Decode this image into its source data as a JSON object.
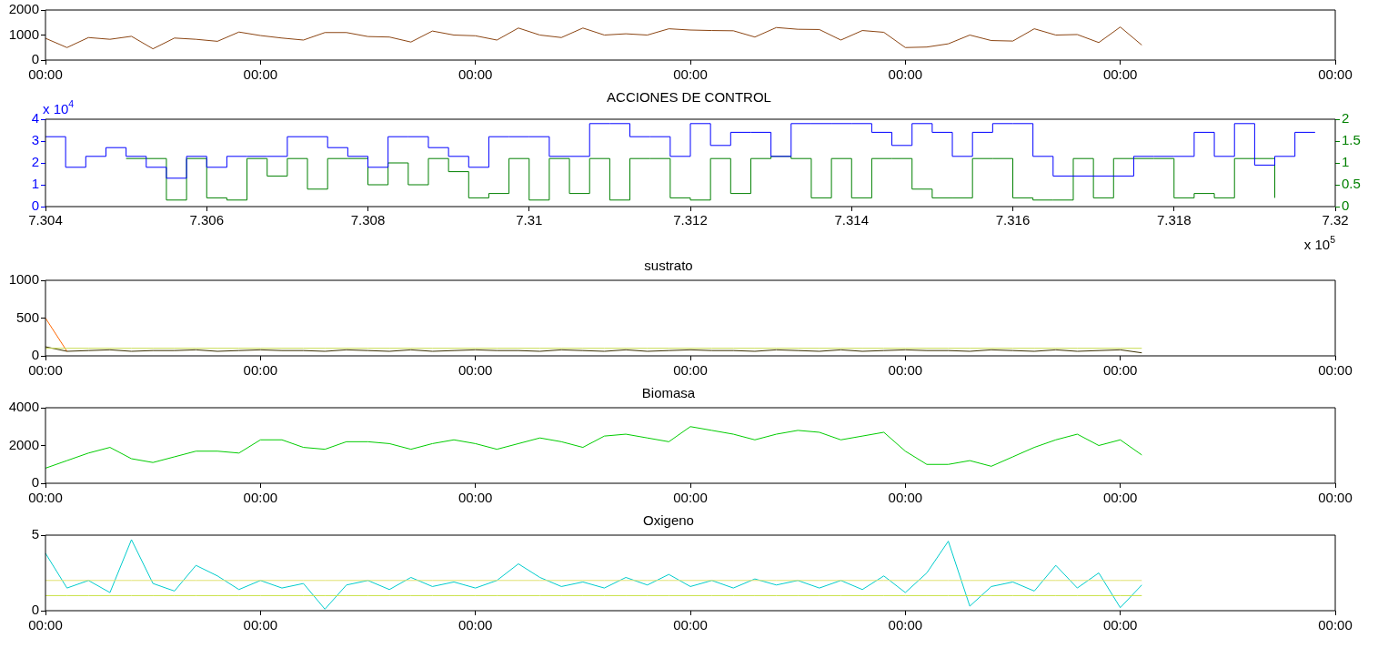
{
  "chart_data": [
    {
      "type": "line",
      "categories": [
        "00:00",
        null,
        null,
        null,
        null,
        null,
        null,
        null,
        null,
        null,
        "00:00",
        null,
        null,
        null,
        null,
        null,
        null,
        null,
        null,
        null,
        "00:00",
        null,
        null,
        null,
        null,
        null,
        null,
        null,
        null,
        null,
        "00:00",
        null,
        null,
        null,
        null,
        null,
        null,
        null,
        null,
        null,
        "00:00",
        null,
        null,
        null,
        null,
        null,
        null,
        null,
        null,
        null,
        "00:00",
        null,
        null,
        null,
        null,
        null,
        null,
        null,
        null,
        null,
        "00:00"
      ],
      "series": [
        {
          "color": "#8b4513",
          "values": [
            870,
            500,
            900,
            830,
            950,
            450,
            880,
            830,
            750,
            1120,
            980,
            880,
            800,
            1100,
            1100,
            940,
            920,
            720,
            1160,
            1000,
            970,
            800,
            1280,
            1000,
            900,
            1280,
            1000,
            1050,
            1000,
            1250,
            1200,
            1180,
            1170,
            920,
            1300,
            1230,
            1220,
            800,
            1180,
            1110,
            500,
            520,
            650,
            1000,
            780,
            760,
            1250,
            1000,
            1020,
            700,
            1320,
            600,
            null,
            null,
            null,
            null,
            null,
            null,
            null,
            null,
            null
          ]
        }
      ],
      "ylim": [
        0,
        2000
      ],
      "yticks": [
        0,
        1000,
        2000
      ],
      "grid": false,
      "legend": false
    },
    {
      "type": "step",
      "title": "ACCIONES DE CONTROL",
      "annotations": [
        "x 10$^{4}$",
        "x 10$^{5}$"
      ],
      "x": [
        7.304,
        7.30425,
        7.3045,
        7.30475,
        7.305,
        7.30525,
        7.3055,
        7.30575,
        7.306,
        7.30625,
        7.3065,
        7.30675,
        7.307,
        7.30725,
        7.3075,
        7.30775,
        7.308,
        7.30825,
        7.3085,
        7.30875,
        7.309,
        7.30925,
        7.3095,
        7.30975,
        7.31,
        7.31025,
        7.3105,
        7.31075,
        7.311,
        7.31125,
        7.3115,
        7.31175,
        7.312,
        7.31225,
        7.3125,
        7.31275,
        7.313,
        7.31325,
        7.3135,
        7.31375,
        7.314,
        7.31425,
        7.3145,
        7.31475,
        7.315,
        7.31525,
        7.3155,
        7.31575,
        7.316,
        7.31625,
        7.3165,
        7.31675,
        7.317,
        7.31725,
        7.3175,
        7.31775,
        7.318,
        7.31825,
        7.3185,
        7.31875,
        7.319,
        7.31925,
        7.3195,
        7.31975
      ],
      "series": [
        {
          "color": "#0000ff",
          "values": [
            3.2,
            1.8,
            2.3,
            2.7,
            2.3,
            1.8,
            1.3,
            2.3,
            1.8,
            2.3,
            2.3,
            2.3,
            3.2,
            3.2,
            2.7,
            2.3,
            1.8,
            3.2,
            3.2,
            2.7,
            2.3,
            1.8,
            3.2,
            3.2,
            3.2,
            2.3,
            2.3,
            3.8,
            3.8,
            3.2,
            3.2,
            2.3,
            3.8,
            2.8,
            3.4,
            3.4,
            2.3,
            3.8,
            3.8,
            3.8,
            3.8,
            3.4,
            2.8,
            3.8,
            3.4,
            2.3,
            3.4,
            3.8,
            3.8,
            2.3,
            1.4,
            1.4,
            1.4,
            1.4,
            2.3,
            2.3,
            2.3,
            3.4,
            2.3,
            3.8,
            1.9,
            2.3,
            3.4,
            3.4
          ]
        },
        {
          "color": "#008000",
          "axis": "y2",
          "values": [
            null,
            null,
            null,
            null,
            1.1,
            1.1,
            0.15,
            1.1,
            0.2,
            0.15,
            1.1,
            0.7,
            1.1,
            0.4,
            1.1,
            1.1,
            0.5,
            1.0,
            0.5,
            1.1,
            0.8,
            0.2,
            0.3,
            1.1,
            0.15,
            1.1,
            0.3,
            1.1,
            0.15,
            1.1,
            1.1,
            0.2,
            0.15,
            1.1,
            0.3,
            1.1,
            1.15,
            1.1,
            0.2,
            1.1,
            0.2,
            1.1,
            1.1,
            0.4,
            0.2,
            0.2,
            1.1,
            1.1,
            0.2,
            0.15,
            0.15,
            1.1,
            0.2,
            1.1,
            1.1,
            1.1,
            0.2,
            0.3,
            0.2,
            1.1,
            1.1,
            0.2,
            null,
            null
          ]
        }
      ],
      "xlim": [
        7.304,
        7.32
      ],
      "xticks": [
        7.304,
        7.306,
        7.308,
        7.31,
        7.312,
        7.314,
        7.316,
        7.318,
        7.32
      ],
      "ylim": [
        0,
        4
      ],
      "yticks": [
        0,
        1,
        2,
        3,
        4
      ],
      "y2lim": [
        0,
        2
      ],
      "y2ticks": [
        0,
        0.5,
        1,
        1.5,
        2
      ],
      "grid": false,
      "legend": false
    },
    {
      "type": "line",
      "title": "sustrato",
      "categories": [
        "00:00",
        null,
        null,
        null,
        null,
        null,
        null,
        null,
        null,
        null,
        "00:00",
        null,
        null,
        null,
        null,
        null,
        null,
        null,
        null,
        null,
        "00:00",
        null,
        null,
        null,
        null,
        null,
        null,
        null,
        null,
        null,
        "00:00",
        null,
        null,
        null,
        null,
        null,
        null,
        null,
        null,
        null,
        "00:00",
        null,
        null,
        null,
        null,
        null,
        null,
        null,
        null,
        null,
        "00:00",
        null,
        null,
        null,
        null,
        null,
        null,
        null,
        null,
        null,
        "00:00"
      ],
      "series": [
        {
          "color": "#c8dc50",
          "values": [
            100,
            100,
            100,
            100,
            100,
            100,
            100,
            100,
            100,
            100,
            100,
            100,
            100,
            100,
            100,
            100,
            100,
            100,
            100,
            100,
            100,
            100,
            100,
            100,
            100,
            100,
            100,
            100,
            100,
            100,
            100,
            100,
            100,
            100,
            100,
            100,
            100,
            100,
            100,
            100,
            100,
            100,
            100,
            100,
            100,
            100,
            100,
            100,
            100,
            100,
            100,
            100,
            null,
            null,
            null,
            null,
            null,
            null,
            null,
            null,
            null
          ]
        },
        {
          "color": "#3a3000",
          "values": [
            120,
            60,
            70,
            80,
            60,
            70,
            70,
            80,
            60,
            70,
            80,
            70,
            70,
            60,
            80,
            70,
            60,
            80,
            60,
            70,
            80,
            70,
            70,
            60,
            80,
            70,
            60,
            80,
            60,
            70,
            80,
            70,
            70,
            60,
            80,
            70,
            60,
            80,
            60,
            70,
            80,
            70,
            70,
            60,
            80,
            70,
            60,
            80,
            60,
            70,
            80,
            40,
            null,
            null,
            null,
            null,
            null,
            null,
            null,
            null,
            null
          ]
        },
        {
          "color": "#ff6600",
          "values": [
            500,
            60,
            null,
            null,
            null,
            null,
            null,
            null,
            null,
            null,
            null,
            null,
            null,
            null,
            null,
            null,
            null,
            null,
            null,
            null,
            null,
            null,
            null,
            null,
            null,
            null,
            null,
            null,
            null,
            null,
            null,
            null,
            null,
            null,
            null,
            null,
            null,
            null,
            null,
            null,
            null,
            null,
            null,
            null,
            null,
            null,
            null,
            null,
            null,
            null,
            null,
            null,
            null,
            null,
            null,
            null,
            null,
            null,
            null,
            null,
            null
          ]
        }
      ],
      "ylim": [
        0,
        1000
      ],
      "yticks": [
        0,
        500,
        1000
      ],
      "grid": false,
      "legend": false
    },
    {
      "type": "line",
      "title": "Biomasa",
      "categories": [
        "00:00",
        null,
        null,
        null,
        null,
        null,
        null,
        null,
        null,
        null,
        "00:00",
        null,
        null,
        null,
        null,
        null,
        null,
        null,
        null,
        null,
        "00:00",
        null,
        null,
        null,
        null,
        null,
        null,
        null,
        null,
        null,
        "00:00",
        null,
        null,
        null,
        null,
        null,
        null,
        null,
        null,
        null,
        "00:00",
        null,
        null,
        null,
        null,
        null,
        null,
        null,
        null,
        null,
        "00:00",
        null,
        null,
        null,
        null,
        null,
        null,
        null,
        null,
        null,
        "00:00"
      ],
      "series": [
        {
          "color": "#00cc00",
          "values": [
            800,
            1200,
            1600,
            1900,
            1300,
            1100,
            1400,
            1700,
            1700,
            1600,
            2300,
            2300,
            1900,
            1800,
            2200,
            2200,
            2100,
            1800,
            2100,
            2300,
            2100,
            1800,
            2100,
            2400,
            2200,
            1900,
            2500,
            2600,
            2400,
            2200,
            3000,
            2800,
            2600,
            2300,
            2600,
            2800,
            2700,
            2300,
            2500,
            2700,
            1700,
            1000,
            1000,
            1200,
            900,
            1400,
            1900,
            2300,
            2600,
            2000,
            2300,
            1500,
            null,
            null,
            null,
            null,
            null,
            null,
            null,
            null,
            null
          ]
        }
      ],
      "ylim": [
        0,
        4000
      ],
      "yticks": [
        0,
        2000,
        4000
      ],
      "grid": false,
      "legend": false
    },
    {
      "type": "line",
      "title": "Oxigeno",
      "categories": [
        "00:00",
        null,
        null,
        null,
        null,
        null,
        null,
        null,
        null,
        null,
        "00:00",
        null,
        null,
        null,
        null,
        null,
        null,
        null,
        null,
        null,
        "00:00",
        null,
        null,
        null,
        null,
        null,
        null,
        null,
        null,
        null,
        "00:00",
        null,
        null,
        null,
        null,
        null,
        null,
        null,
        null,
        null,
        "00:00",
        null,
        null,
        null,
        null,
        null,
        null,
        null,
        null,
        null,
        "00:00",
        null,
        null,
        null,
        null,
        null,
        null,
        null,
        null,
        null,
        "00:00"
      ],
      "series": [
        {
          "color": "#e0e070",
          "values": [
            2,
            2,
            2,
            2,
            2,
            2,
            2,
            2,
            2,
            2,
            2,
            2,
            2,
            2,
            2,
            2,
            2,
            2,
            2,
            2,
            2,
            2,
            2,
            2,
            2,
            2,
            2,
            2,
            2,
            2,
            2,
            2,
            2,
            2,
            2,
            2,
            2,
            2,
            2,
            2,
            2,
            2,
            2,
            2,
            2,
            2,
            2,
            2,
            2,
            2,
            2,
            2,
            null,
            null,
            null,
            null,
            null,
            null,
            null,
            null,
            null
          ]
        },
        {
          "color": "#c8e040",
          "values": [
            1,
            1,
            1,
            1,
            1,
            1,
            1,
            1,
            1,
            1,
            1,
            1,
            1,
            1,
            1,
            1,
            1,
            1,
            1,
            1,
            1,
            1,
            1,
            1,
            1,
            1,
            1,
            1,
            1,
            1,
            1,
            1,
            1,
            1,
            1,
            1,
            1,
            1,
            1,
            1,
            1,
            1,
            1,
            1,
            1,
            1,
            1,
            1,
            1,
            1,
            1,
            1,
            null,
            null,
            null,
            null,
            null,
            null,
            null,
            null,
            null
          ]
        },
        {
          "color": "#00cccc",
          "values": [
            3.8,
            1.5,
            2.0,
            1.2,
            4.7,
            1.8,
            1.3,
            3.0,
            2.3,
            1.4,
            2.0,
            1.5,
            1.8,
            0.1,
            1.7,
            2.0,
            1.4,
            2.2,
            1.6,
            1.9,
            1.5,
            2.0,
            3.1,
            2.2,
            1.6,
            1.9,
            1.5,
            2.2,
            1.7,
            2.4,
            1.6,
            2.0,
            1.5,
            2.1,
            1.7,
            2.0,
            1.5,
            2.0,
            1.4,
            2.3,
            1.2,
            2.5,
            4.6,
            0.3,
            1.6,
            1.9,
            1.3,
            3.0,
            1.5,
            2.5,
            0.2,
            1.7,
            null,
            null,
            null,
            null,
            null,
            null,
            null,
            null,
            null
          ]
        }
      ],
      "ylim": [
        0,
        5
      ],
      "yticks": [
        0,
        5
      ],
      "grid": false,
      "legend": false
    }
  ]
}
